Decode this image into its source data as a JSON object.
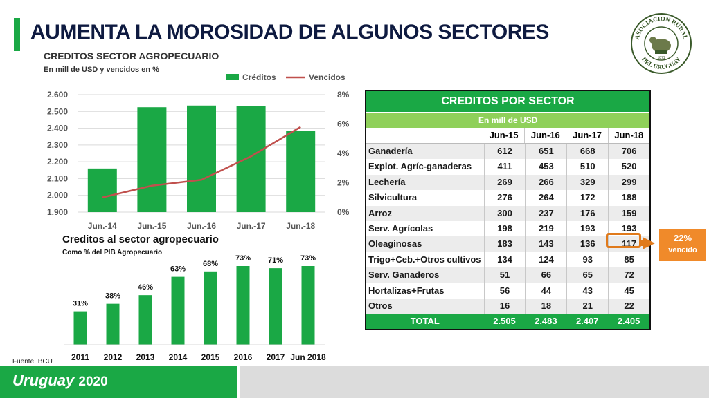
{
  "slide": {
    "title": "AUMENTA LA MOROSIDAD DE ALGUNOS SECTORES",
    "source": "Fuente: BCU",
    "footer_brand": "Uruguay",
    "footer_year": "2020",
    "accent_color": "#1aa845",
    "logo_text_top": "ASOCIACION RURAL",
    "logo_text_bottom": "DEL URUGUAY",
    "logo_year": "1871"
  },
  "chart_data": [
    {
      "type": "bar+line",
      "title": "CREDITOS SECTOR AGROPECUARIO",
      "subtitle": "En mill de USD y vencidos en %",
      "categories": [
        "Jun.-14",
        "Jun.-15",
        "Jun.-16",
        "Jun.-17",
        "Jun.-18"
      ],
      "series": [
        {
          "name": "Créditos",
          "type": "bar",
          "axis": "left",
          "color": "#1aa845",
          "values": [
            2160,
            2525,
            2535,
            2530,
            2385
          ]
        },
        {
          "name": "Vencidos",
          "type": "line",
          "axis": "right",
          "color": "#c0504d",
          "values": [
            1.0,
            1.8,
            2.2,
            3.8,
            5.8
          ]
        }
      ],
      "ylim": [
        1900,
        2600
      ],
      "yticks": [
        "1.900",
        "2.000",
        "2.100",
        "2.200",
        "2.300",
        "2.400",
        "2.500",
        "2.600"
      ],
      "y2lim": [
        0,
        8
      ],
      "y2ticks": [
        "0%",
        "2%",
        "4%",
        "6%",
        "8%"
      ],
      "grid": true,
      "legend": "top-right"
    },
    {
      "type": "bar",
      "title": "Creditos al sector agropecuario",
      "subtitle": "Como % del PIB Agropecuario",
      "categories": [
        "2011",
        "2012",
        "2013",
        "2014",
        "2015",
        "2016",
        "2017",
        "Jun 2018"
      ],
      "values": [
        31,
        38,
        46,
        63,
        68,
        73,
        71,
        73
      ],
      "labels": [
        "31%",
        "38%",
        "46%",
        "63%",
        "68%",
        "73%",
        "71%",
        "73%"
      ],
      "color": "#1aa845"
    },
    {
      "type": "table",
      "title": "CREDITOS POR SECTOR",
      "subtitle": "En mill de USD",
      "columns": [
        "Jun-15",
        "Jun-16",
        "Jun-17",
        "Jun-18"
      ],
      "rows": [
        [
          "Ganadería",
          "612",
          "651",
          "668",
          "706"
        ],
        [
          "Explot. Agríc-ganaderas",
          "411",
          "453",
          "510",
          "520"
        ],
        [
          "Lechería",
          "269",
          "266",
          "329",
          "299"
        ],
        [
          "Silvicultura",
          "276",
          "264",
          "172",
          "188"
        ],
        [
          "Arroz",
          "300",
          "237",
          "176",
          "159"
        ],
        [
          "Serv. Agrícolas",
          "198",
          "219",
          "193",
          "193"
        ],
        [
          "Oleaginosas",
          "183",
          "143",
          "136",
          "117"
        ],
        [
          "Trigo+Ceb.+Otros cultivos",
          "134",
          "124",
          "93",
          "85"
        ],
        [
          "Serv. Ganaderos",
          "51",
          "66",
          "65",
          "72"
        ],
        [
          "Hortalizas+Frutas",
          "56",
          "44",
          "43",
          "45"
        ],
        [
          "Otros",
          "16",
          "18",
          "21",
          "22"
        ]
      ],
      "total": [
        "TOTAL",
        "2.505",
        "2.483",
        "2.407",
        "2.405"
      ]
    }
  ],
  "callout": {
    "value": "22%",
    "label": "vencido",
    "color": "#f08a2a"
  }
}
